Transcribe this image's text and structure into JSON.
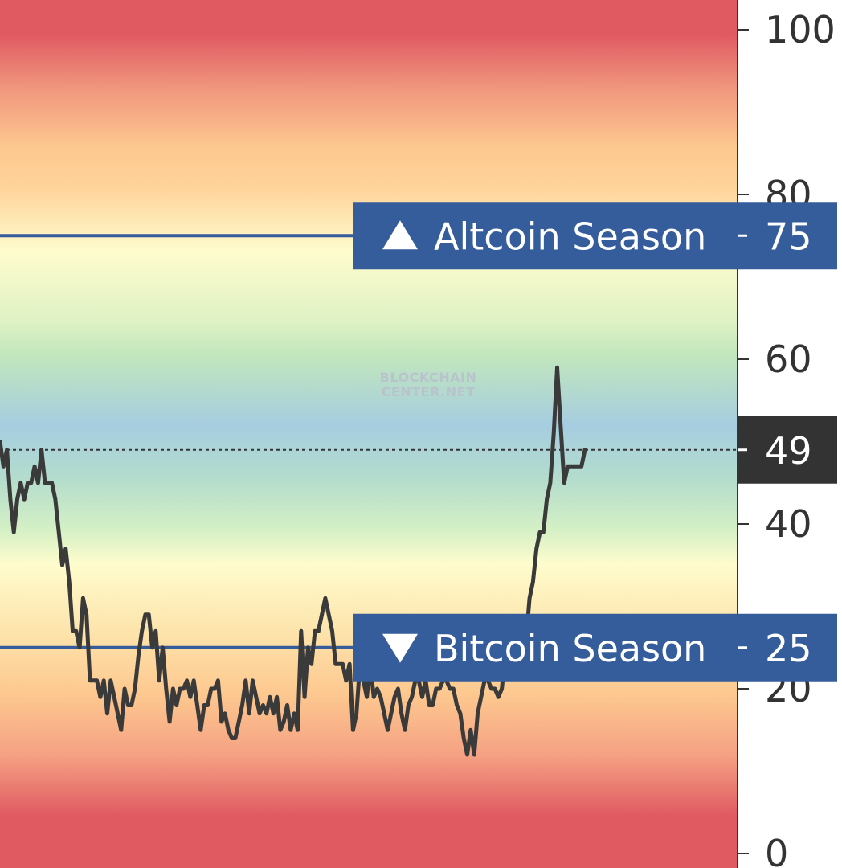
{
  "chart_data": {
    "type": "line",
    "title": "",
    "xlabel": "",
    "ylabel": "",
    "ylim": [
      0,
      100
    ],
    "y_ticks": [
      "0",
      "20",
      "40",
      "60",
      "80",
      "100"
    ],
    "grid": false,
    "current_value": "49",
    "watermark": [
      "BLOCKCHAIN",
      "CENTER.NET"
    ],
    "thresholds": [
      {
        "name": "altcoin-season",
        "label": "Altcoin Season",
        "value": 75,
        "value_text": "75",
        "direction": "up"
      },
      {
        "name": "bitcoin-season",
        "label": "Bitcoin Season",
        "value": 25,
        "value_text": "25",
        "direction": "down"
      }
    ],
    "colors": {
      "line": "#3a3a3a",
      "threshold": "#355c9b",
      "current_box": "#333333",
      "axis": "#333333",
      "gradient_red": "#e05a62",
      "gradient_orange": "#fdc88f",
      "gradient_yellow": "#fefccd",
      "gradient_green": "#c1e6bd",
      "gradient_blue": "#a6cde0"
    },
    "series": [
      {
        "values": [
          50,
          47,
          49,
          43,
          39,
          43,
          45,
          43,
          45,
          45,
          47,
          45,
          49,
          45,
          45,
          45,
          43,
          39,
          35,
          37,
          33,
          27,
          27,
          25,
          31,
          29,
          21,
          21,
          21,
          19,
          21,
          17,
          21,
          19,
          17,
          15,
          20,
          18,
          18,
          20,
          24,
          27,
          29,
          29,
          25,
          27,
          21,
          25,
          20,
          16,
          20,
          18,
          20,
          20,
          21,
          19,
          21,
          18,
          15,
          18,
          18,
          20,
          20,
          21,
          16,
          17,
          15,
          14,
          14,
          16,
          18,
          21,
          17,
          21,
          19,
          17,
          18,
          17,
          19,
          17,
          19,
          15,
          16,
          18,
          15,
          17,
          15,
          27,
          19,
          25,
          23,
          27,
          27,
          29,
          31,
          29,
          27,
          23,
          23,
          23,
          21,
          23,
          15,
          17,
          23,
          21,
          19,
          23,
          19,
          20,
          19,
          17,
          15,
          17,
          19,
          20,
          17,
          15,
          18,
          19,
          21,
          21,
          19,
          21,
          18,
          18,
          20,
          20,
          21,
          21,
          20,
          20,
          18,
          17,
          14,
          12,
          15,
          12,
          17,
          19,
          21,
          21,
          20,
          20,
          19,
          20,
          24,
          27,
          25,
          25,
          23,
          27,
          26,
          31,
          33,
          37,
          39,
          39,
          43,
          45,
          51,
          59,
          52,
          45,
          47,
          47,
          47,
          47,
          47,
          49
        ]
      }
    ]
  }
}
